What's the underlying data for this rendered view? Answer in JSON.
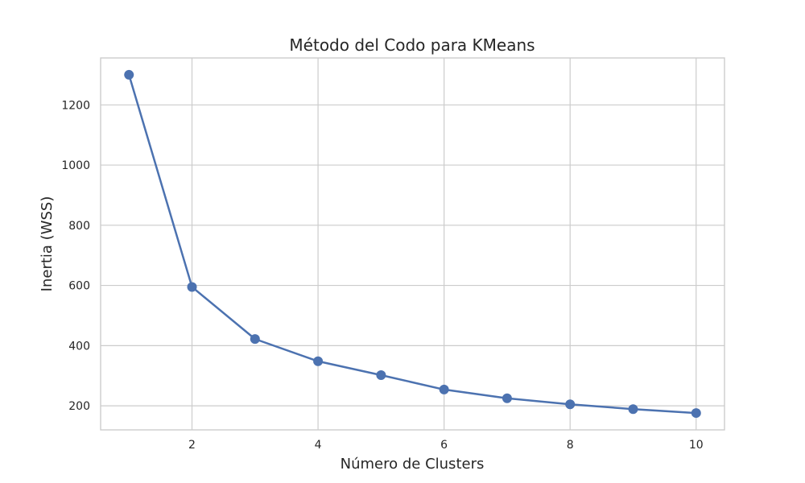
{
  "chart_data": {
    "type": "line",
    "title": "Método del Codo para KMeans",
    "xlabel": "Número de Clusters",
    "ylabel": "Inertia (WSS)",
    "x": [
      1,
      2,
      3,
      4,
      5,
      6,
      7,
      8,
      9,
      10
    ],
    "series": [
      {
        "values": [
          1300,
          595,
          422,
          348,
          302,
          254,
          225,
          205,
          189,
          176
        ]
      }
    ],
    "xlim": [
      0.55,
      10.45
    ],
    "ylim": [
      120,
      1356
    ],
    "xticks": [
      2,
      4,
      6,
      8,
      10
    ],
    "yticks": [
      200,
      400,
      600,
      800,
      1000,
      1200
    ],
    "xtick_labels": [
      "2",
      "4",
      "6",
      "8",
      "10"
    ],
    "ytick_labels": [
      "200",
      "400",
      "600",
      "800",
      "1000",
      "1200"
    ],
    "grid": true,
    "marker": "circle",
    "line_color": "#4c72b0",
    "grid_color": "#cccccc",
    "spine_color": "#cccccc"
  }
}
